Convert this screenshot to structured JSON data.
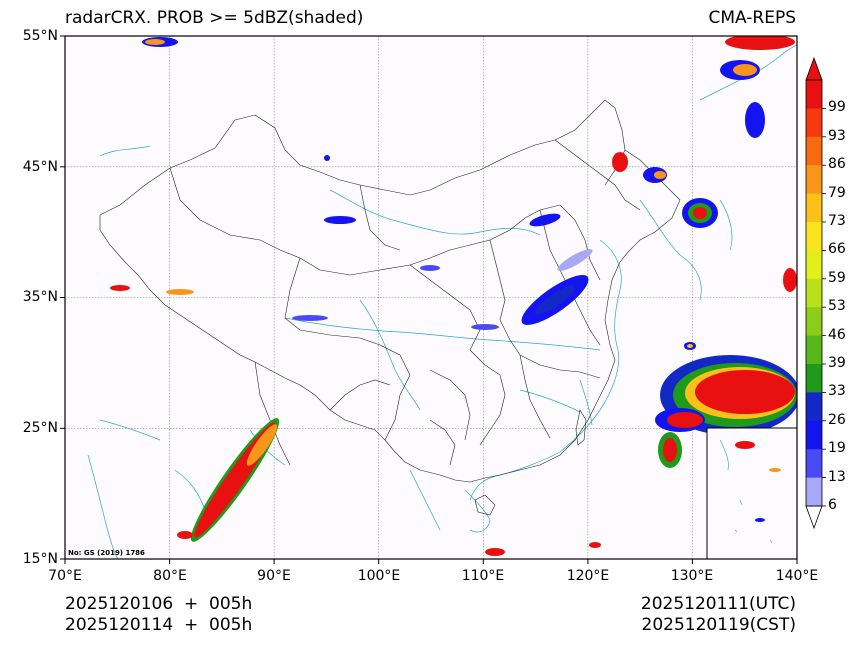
{
  "title_left": "radarCRX. PROB >= 5dBZ(shaded)",
  "title_right": "CMA-REPS",
  "lat_labels": [
    "55°N",
    "45°N",
    "35°N",
    "25°N",
    "15°N"
  ],
  "lon_labels": [
    "70°E",
    "80°E",
    "90°E",
    "100°E",
    "110°E",
    "120°E",
    "130°E",
    "140°E"
  ],
  "map_note": "No: GS (2019) 1786",
  "init_utc": "2025120106  +  005h",
  "init_cst": "2025120114  +  005h",
  "valid_utc": "2025120111(UTC)",
  "valid_cst": "2025120119(CST)",
  "colorbar": {
    "labels": [
      "99",
      "93",
      "86",
      "79",
      "73",
      "66",
      "59",
      "53",
      "46",
      "39",
      "33",
      "26",
      "19",
      "13",
      "6"
    ],
    "colors": [
      "#e81010",
      "#f53a10",
      "#f76a10",
      "#f9951a",
      "#fbc11a",
      "#fbe31e",
      "#e3ef1a",
      "#b9e01a",
      "#8ccc1a",
      "#56b81a",
      "#1f9a1a",
      "#1428c8",
      "#1414f0",
      "#4a4af5",
      "#a8a8f8",
      "#ffffff"
    ]
  }
}
